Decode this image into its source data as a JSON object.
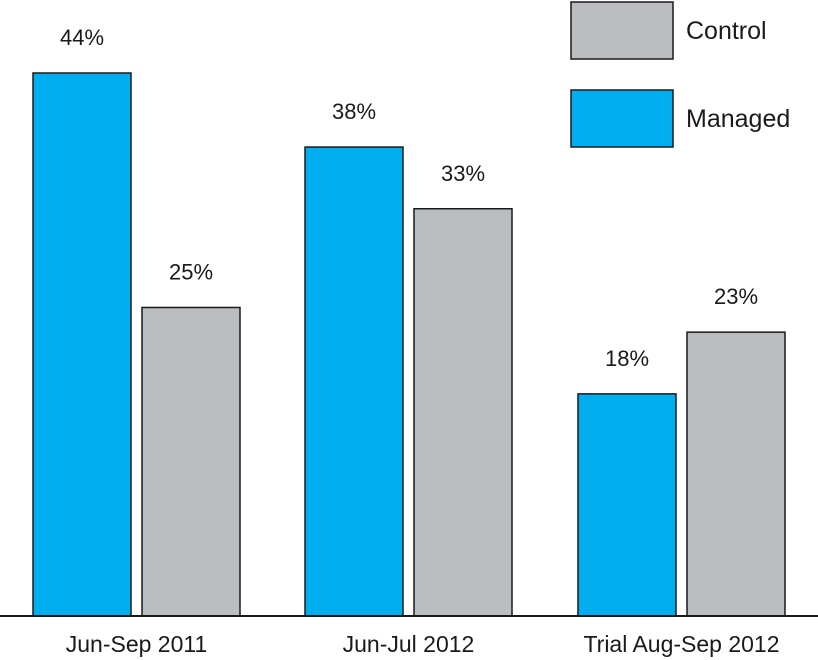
{
  "chart_data": {
    "type": "bar",
    "categories": [
      "Jun-Sep 2011",
      "Jun-Jul 2012",
      "Trial Aug-Sep 2012"
    ],
    "series": [
      {
        "name": "Managed",
        "values": [
          44,
          38,
          18
        ],
        "labels": [
          "44%",
          "38%",
          "18%"
        ],
        "color": "#00aeef"
      },
      {
        "name": "Control",
        "values": [
          25,
          33,
          23
        ],
        "labels": [
          "25%",
          "33%",
          "23%"
        ],
        "color": "#bcbdc0"
      }
    ],
    "legend_order": [
      "Control",
      "Managed"
    ],
    "legend_position": "top-right",
    "value_unit": "%",
    "ylim": [
      0,
      44
    ],
    "grid": false,
    "bar_outline_color": "#1a1a1a"
  }
}
